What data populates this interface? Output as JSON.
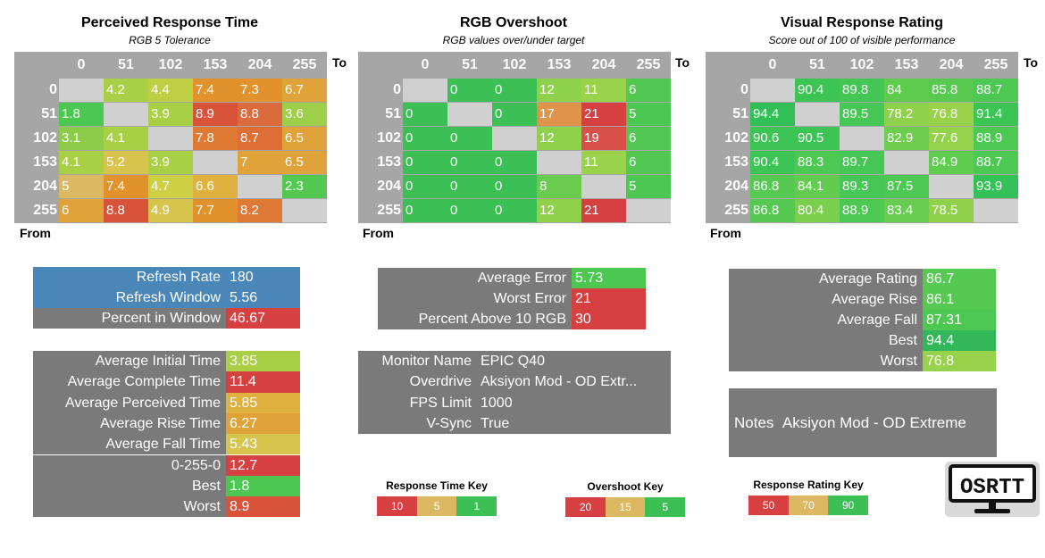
{
  "panels": [
    {
      "title": "Perceived Response Time",
      "subtitle": "RGB 5 Tolerance",
      "to_label": "To",
      "from_label": "From",
      "cols": [
        "0",
        "51",
        "102",
        "153",
        "204",
        "255"
      ],
      "rows": [
        "0",
        "51",
        "102",
        "153",
        "204",
        "255"
      ],
      "cells": [
        [
          "",
          "4.2",
          "4.4",
          "7.4",
          "7.3",
          "6.7"
        ],
        [
          "1.8",
          "",
          "3.9",
          "8.9",
          "8.8",
          "3.6"
        ],
        [
          "3.1",
          "4.1",
          "",
          "7.8",
          "8.7",
          "6.5"
        ],
        [
          "4.1",
          "5.2",
          "3.9",
          "",
          "7",
          "6.5"
        ],
        [
          "5",
          "7.4",
          "4.7",
          "6.6",
          "",
          "2.3"
        ],
        [
          "6",
          "8.8",
          "4.9",
          "7.7",
          "8.2",
          ""
        ]
      ],
      "colors": [
        [
          "#d0d0d0",
          "#a9cf45",
          "#bfcf45",
          "#e1922d",
          "#e1922d",
          "#e0a33a"
        ],
        [
          "#4cc852",
          "#d0d0d0",
          "#a9cf45",
          "#d9523a",
          "#db6a3c",
          "#9dcf48"
        ],
        [
          "#8ccc4a",
          "#a9cf45",
          "#d0d0d0",
          "#df7a33",
          "#de6e35",
          "#e0a33a"
        ],
        [
          "#a9cf45",
          "#d6c44c",
          "#a9cf45",
          "#d0d0d0",
          "#e0a33a",
          "#e0a33a"
        ],
        [
          "#dcb863",
          "#e1922d",
          "#cfcf45",
          "#e0b13f",
          "#d0d0d0",
          "#53c850"
        ],
        [
          "#e0a33a",
          "#d9523a",
          "#d6c44c",
          "#e1922d",
          "#de7a35",
          "#d0d0d0"
        ]
      ]
    },
    {
      "title": "RGB Overshoot",
      "subtitle": "RGB values over/under target",
      "to_label": "To",
      "from_label": "From",
      "cols": [
        "0",
        "51",
        "102",
        "153",
        "204",
        "255"
      ],
      "rows": [
        "0",
        "51",
        "102",
        "153",
        "204",
        "255"
      ],
      "cells": [
        [
          "",
          "0",
          "0",
          "12",
          "11",
          "6"
        ],
        [
          "0",
          "",
          "0",
          "17",
          "21",
          "5"
        ],
        [
          "0",
          "0",
          "",
          "12",
          "19",
          "6"
        ],
        [
          "0",
          "0",
          "0",
          "",
          "11",
          "6"
        ],
        [
          "0",
          "0",
          "0",
          "8",
          "",
          "5"
        ],
        [
          "0",
          "0",
          "0",
          "12",
          "21",
          ""
        ]
      ],
      "colors": [
        [
          "#d0d0d0",
          "#3cbf55",
          "#3cbf55",
          "#8fd14a",
          "#9ad24a",
          "#52c852"
        ],
        [
          "#3cbf55",
          "#d0d0d0",
          "#3cbf55",
          "#e0934a",
          "#d64040",
          "#4cc852"
        ],
        [
          "#3cbf55",
          "#3cbf55",
          "#d0d0d0",
          "#8fd14a",
          "#d9504a",
          "#52c852"
        ],
        [
          "#3cbf55",
          "#3cbf55",
          "#3cbf55",
          "#d0d0d0",
          "#9ad24a",
          "#52c852"
        ],
        [
          "#3cbf55",
          "#3cbf55",
          "#3cbf55",
          "#6acc4e",
          "#d0d0d0",
          "#4cc852"
        ],
        [
          "#3cbf55",
          "#3cbf55",
          "#3cbf55",
          "#8fd14a",
          "#d64040",
          "#d0d0d0"
        ]
      ]
    },
    {
      "title": "Visual Response Rating",
      "subtitle": "Score out of 100 of visible performance",
      "to_label": "To",
      "from_label": "From",
      "cols": [
        "0",
        "51",
        "102",
        "153",
        "204",
        "255"
      ],
      "rows": [
        "0",
        "51",
        "102",
        "153",
        "204",
        "255"
      ],
      "cells": [
        [
          "",
          "90.4",
          "89.8",
          "84",
          "85.8",
          "88.7"
        ],
        [
          "94.4",
          "",
          "89.5",
          "78.2",
          "76.8",
          "91.4"
        ],
        [
          "90.6",
          "90.5",
          "",
          "82.9",
          "77.6",
          "88.9"
        ],
        [
          "90.4",
          "88.3",
          "89.7",
          "",
          "84.9",
          "88.7"
        ],
        [
          "86.8",
          "84.1",
          "89.3",
          "87.5",
          "",
          "93.9"
        ],
        [
          "86.8",
          "80.4",
          "88.9",
          "83.4",
          "78.5",
          ""
        ]
      ],
      "colors": [
        [
          "#d0d0d0",
          "#3cc455",
          "#44c655",
          "#5fcc50",
          "#58ca50",
          "#4cc853"
        ],
        [
          "#32bf58",
          "#d0d0d0",
          "#46c655",
          "#8fd14a",
          "#97d24a",
          "#3cc455"
        ],
        [
          "#3cc455",
          "#3cc455",
          "#d0d0d0",
          "#6ecd4e",
          "#93d24a",
          "#4cc853"
        ],
        [
          "#3cc455",
          "#4cc853",
          "#46c655",
          "#d0d0d0",
          "#5fcc50",
          "#4cc853"
        ],
        [
          "#55c952",
          "#62cc50",
          "#46c655",
          "#4cc853",
          "#d0d0d0",
          "#34c157"
        ],
        [
          "#55c952",
          "#7acf4c",
          "#4cc853",
          "#66cd50",
          "#8fd14a",
          "#d0d0d0"
        ]
      ]
    }
  ],
  "refresh_box": {
    "rows": [
      {
        "label": "Refresh Rate",
        "value": "180",
        "label_bg": "#4a86b8",
        "value_bg": "#4a86b8"
      },
      {
        "label": "Refresh Window",
        "value": "5.56",
        "label_bg": "#4a86b8",
        "value_bg": "#4a86b8"
      },
      {
        "label": "Percent in Window",
        "value": "46.67",
        "label_bg": "#7a7a7a",
        "value_bg": "#d64040"
      }
    ]
  },
  "time_box": {
    "rows": [
      {
        "label": "Average Initial Time",
        "value": "3.85",
        "value_bg": "#a9cf45"
      },
      {
        "label": "Average Complete Time",
        "value": "11.4",
        "value_bg": "#d64040"
      },
      {
        "label": "Average Perceived Time",
        "value": "5.85",
        "value_bg": "#e0b13f"
      },
      {
        "label": "Average Rise Time",
        "value": "6.27",
        "value_bg": "#e0a33a"
      },
      {
        "label": "Average Fall Time",
        "value": "5.43",
        "value_bg": "#d6c44c"
      },
      {
        "label": "0-255-0",
        "value": "12.7",
        "value_bg": "#d64040"
      },
      {
        "label": "Best",
        "value": "1.8",
        "value_bg": "#4cc852"
      },
      {
        "label": "Worst",
        "value": "8.9",
        "value_bg": "#d9523a"
      }
    ]
  },
  "error_box": {
    "rows": [
      {
        "label": "Average Error",
        "value": "5.73",
        "value_bg": "#4cc852"
      },
      {
        "label": "Worst Error",
        "value": "21",
        "value_bg": "#d64040"
      },
      {
        "label": "Percent Above 10 RGB",
        "value": "30",
        "value_bg": "#d64040"
      }
    ]
  },
  "monitor_box": {
    "rows": [
      {
        "label": "Monitor Name",
        "value": "EPIC Q40"
      },
      {
        "label": "Overdrive",
        "value": "Aksiyon Mod - OD Extr..."
      },
      {
        "label": "FPS Limit",
        "value": "1000"
      },
      {
        "label": "V-Sync",
        "value": "True"
      }
    ]
  },
  "rating_box": {
    "rows": [
      {
        "label": "Average Rating",
        "value": "86.7",
        "value_bg": "#55c952"
      },
      {
        "label": "Average Rise",
        "value": "86.1",
        "value_bg": "#55c952"
      },
      {
        "label": "Average Fall",
        "value": "87.31",
        "value_bg": "#4cc853"
      },
      {
        "label": "Best",
        "value": "94.4",
        "value_bg": "#32b858"
      },
      {
        "label": "Worst",
        "value": "76.8",
        "value_bg": "#97d24a"
      }
    ]
  },
  "notes": {
    "label": "Notes",
    "value": "Aksiyon Mod - OD Extreme"
  },
  "keys": [
    {
      "title": "Response Time Key",
      "cells": [
        {
          "text": "10",
          "bg": "#d64040"
        },
        {
          "text": "5",
          "bg": "#dcb863"
        },
        {
          "text": "1",
          "bg": "#3cbf55"
        }
      ]
    },
    {
      "title": "Overshoot Key",
      "cells": [
        {
          "text": "20",
          "bg": "#d64040"
        },
        {
          "text": "15",
          "bg": "#dcb863"
        },
        {
          "text": "5",
          "bg": "#3cbf55"
        }
      ]
    },
    {
      "title": "Response Rating Key",
      "cells": [
        {
          "text": "50",
          "bg": "#d64040"
        },
        {
          "text": "70",
          "bg": "#dcb863"
        },
        {
          "text": "90",
          "bg": "#3cbf55"
        }
      ]
    }
  ],
  "logo": {
    "text": "OSRTT",
    "icon": "monitor-logo-icon"
  }
}
